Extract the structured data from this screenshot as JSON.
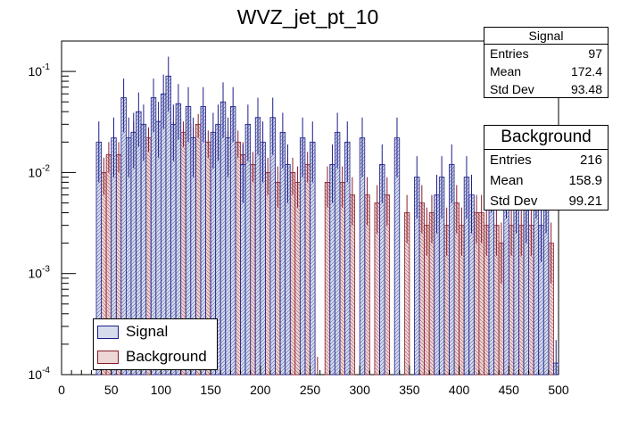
{
  "chart_data": {
    "type": "bar",
    "title": "WVZ_jet_pt_10",
    "xlabel": "",
    "ylabel": "",
    "xlim": [
      0,
      500
    ],
    "ylim": [
      0.0001,
      0.2
    ],
    "yscale": "log",
    "bin_width": 5,
    "x_ticks": [
      "0",
      "50",
      "100",
      "150",
      "200",
      "250",
      "300",
      "350",
      "400",
      "450",
      "500"
    ],
    "y_ticks": [
      {
        "value": 0.0001,
        "base": "10",
        "exp": "-4"
      },
      {
        "value": 0.001,
        "base": "10",
        "exp": "-3"
      },
      {
        "value": 0.01,
        "base": "10",
        "exp": "-2"
      },
      {
        "value": 0.1,
        "base": "10",
        "exp": "-1"
      }
    ],
    "series": [
      {
        "name": "Signal",
        "fill": "#d6dcec",
        "line": "#1c1c8a",
        "points": [
          [
            37.5,
            0.02,
            0.012
          ],
          [
            52.5,
            0.022,
            0.013
          ],
          [
            62.5,
            0.055,
            0.03
          ],
          [
            67.5,
            0.022,
            0.013
          ],
          [
            72.5,
            0.025,
            0.014
          ],
          [
            77.5,
            0.04,
            0.022
          ],
          [
            82.5,
            0.03,
            0.017
          ],
          [
            92.5,
            0.055,
            0.03
          ],
          [
            97.5,
            0.032,
            0.018
          ],
          [
            102.5,
            0.06,
            0.033
          ],
          [
            107.5,
            0.09,
            0.05
          ],
          [
            112.5,
            0.03,
            0.017
          ],
          [
            117.5,
            0.048,
            0.027
          ],
          [
            127.5,
            0.045,
            0.025
          ],
          [
            132.5,
            0.022,
            0.013
          ],
          [
            142.5,
            0.045,
            0.025
          ],
          [
            152.5,
            0.025,
            0.014
          ],
          [
            157.5,
            0.03,
            0.017
          ],
          [
            162.5,
            0.05,
            0.028
          ],
          [
            167.5,
            0.022,
            0.013
          ],
          [
            172.5,
            0.045,
            0.025
          ],
          [
            182.5,
            0.012,
            0.007
          ],
          [
            187.5,
            0.03,
            0.017
          ],
          [
            197.5,
            0.035,
            0.02
          ],
          [
            202.5,
            0.02,
            0.012
          ],
          [
            212.5,
            0.035,
            0.02
          ],
          [
            222.5,
            0.025,
            0.014
          ],
          [
            227.5,
            0.012,
            0.007
          ],
          [
            242.5,
            0.022,
            0.013
          ],
          [
            252.5,
            0.02,
            0.012
          ],
          [
            272.5,
            0.012,
            0.007
          ],
          [
            277.5,
            0.025,
            0.014
          ],
          [
            287.5,
            0.02,
            0.012
          ],
          [
            302.5,
            0.022,
            0.013
          ],
          [
            322.5,
            0.012,
            0.007
          ],
          [
            337.5,
            0.022,
            0.013
          ],
          [
            357.5,
            0.009,
            0.0055
          ],
          [
            377.5,
            0.006,
            0.0035
          ],
          [
            382.5,
            0.009,
            0.0055
          ],
          [
            392.5,
            0.012,
            0.007
          ],
          [
            407.5,
            0.009,
            0.0055
          ],
          [
            412.5,
            0.006,
            0.0035
          ],
          [
            432.5,
            0.01,
            0.006
          ],
          [
            447.5,
            0.009,
            0.0055
          ],
          [
            457.5,
            0.006,
            0.0035
          ],
          [
            467.5,
            0.005,
            0.003
          ],
          [
            477.5,
            0.009,
            0.0055
          ],
          [
            482.5,
            0.003,
            0.0017
          ],
          [
            487.5,
            0.006,
            0.0035
          ],
          [
            497.5,
            0.00013,
            9e-05
          ]
        ]
      },
      {
        "name": "Background",
        "fill": "#ecd6d6",
        "line": "#8a1c2a",
        "points": [
          [
            42.5,
            0.01,
            0.004
          ],
          [
            47.5,
            0.015,
            0.005
          ],
          [
            57.5,
            0.015,
            0.005
          ],
          [
            62.5,
            0.02,
            0.006
          ],
          [
            67.5,
            0.012,
            0.004
          ],
          [
            72.5,
            0.025,
            0.007
          ],
          [
            77.5,
            0.015,
            0.005
          ],
          [
            82.5,
            0.02,
            0.006
          ],
          [
            87.5,
            0.022,
            0.006
          ],
          [
            92.5,
            0.015,
            0.005
          ],
          [
            97.5,
            0.025,
            0.007
          ],
          [
            102.5,
            0.03,
            0.008
          ],
          [
            107.5,
            0.04,
            0.009
          ],
          [
            112.5,
            0.025,
            0.007
          ],
          [
            117.5,
            0.035,
            0.008
          ],
          [
            122.5,
            0.025,
            0.007
          ],
          [
            127.5,
            0.03,
            0.008
          ],
          [
            132.5,
            0.022,
            0.006
          ],
          [
            137.5,
            0.03,
            0.008
          ],
          [
            142.5,
            0.025,
            0.007
          ],
          [
            147.5,
            0.02,
            0.006
          ],
          [
            152.5,
            0.02,
            0.006
          ],
          [
            157.5,
            0.022,
            0.006
          ],
          [
            162.5,
            0.025,
            0.007
          ],
          [
            167.5,
            0.02,
            0.006
          ],
          [
            172.5,
            0.015,
            0.005
          ],
          [
            177.5,
            0.02,
            0.006
          ],
          [
            182.5,
            0.015,
            0.005
          ],
          [
            187.5,
            0.01,
            0.004
          ],
          [
            192.5,
            0.012,
            0.004
          ],
          [
            197.5,
            0.015,
            0.005
          ],
          [
            202.5,
            0.012,
            0.004
          ],
          [
            207.5,
            0.01,
            0.004
          ],
          [
            212.5,
            0.012,
            0.004
          ],
          [
            217.5,
            0.008,
            0.0035
          ],
          [
            222.5,
            0.01,
            0.004
          ],
          [
            227.5,
            0.01,
            0.004
          ],
          [
            232.5,
            0.01,
            0.004
          ],
          [
            237.5,
            0.008,
            0.0035
          ],
          [
            247.5,
            0.012,
            0.004
          ],
          [
            252.5,
            0.008,
            0.0035
          ],
          [
            257.5,
            0.0001,
            5e-05
          ],
          [
            267.5,
            0.008,
            0.0035
          ],
          [
            282.5,
            0.008,
            0.0035
          ],
          [
            292.5,
            0.006,
            0.003
          ],
          [
            307.5,
            0.006,
            0.003
          ],
          [
            317.5,
            0.005,
            0.0025
          ],
          [
            327.5,
            0.006,
            0.003
          ],
          [
            347.5,
            0.004,
            0.002
          ],
          [
            362.5,
            0.005,
            0.0025
          ],
          [
            367.5,
            0.003,
            0.0015
          ],
          [
            372.5,
            0.004,
            0.002
          ],
          [
            387.5,
            0.003,
            0.0015
          ],
          [
            397.5,
            0.005,
            0.0025
          ],
          [
            402.5,
            0.003,
            0.0015
          ],
          [
            417.5,
            0.004,
            0.002
          ],
          [
            422.5,
            0.004,
            0.002
          ],
          [
            427.5,
            0.003,
            0.0015
          ],
          [
            437.5,
            0.003,
            0.0015
          ],
          [
            442.5,
            0.002,
            0.0012
          ],
          [
            452.5,
            0.003,
            0.0015
          ],
          [
            462.5,
            0.003,
            0.0015
          ],
          [
            472.5,
            0.003,
            0.0015
          ],
          [
            492.5,
            0.002,
            0.0012
          ]
        ]
      }
    ]
  },
  "stats": {
    "signal": {
      "title": "Signal",
      "entries_label": "Entries",
      "entries": "97",
      "mean_label": "Mean",
      "mean": "172.4",
      "std_label": "Std Dev",
      "std": "93.48"
    },
    "background": {
      "title": "Background",
      "entries_label": "Entries",
      "entries": "216",
      "mean_label": "Mean",
      "mean": "158.9",
      "std_label": "Std Dev",
      "std": "99.21"
    }
  },
  "legend": {
    "signal_label": "Signal",
    "background_label": "Background",
    "signal_color": "#d6dcec",
    "background_color": "#ecd6d6"
  }
}
